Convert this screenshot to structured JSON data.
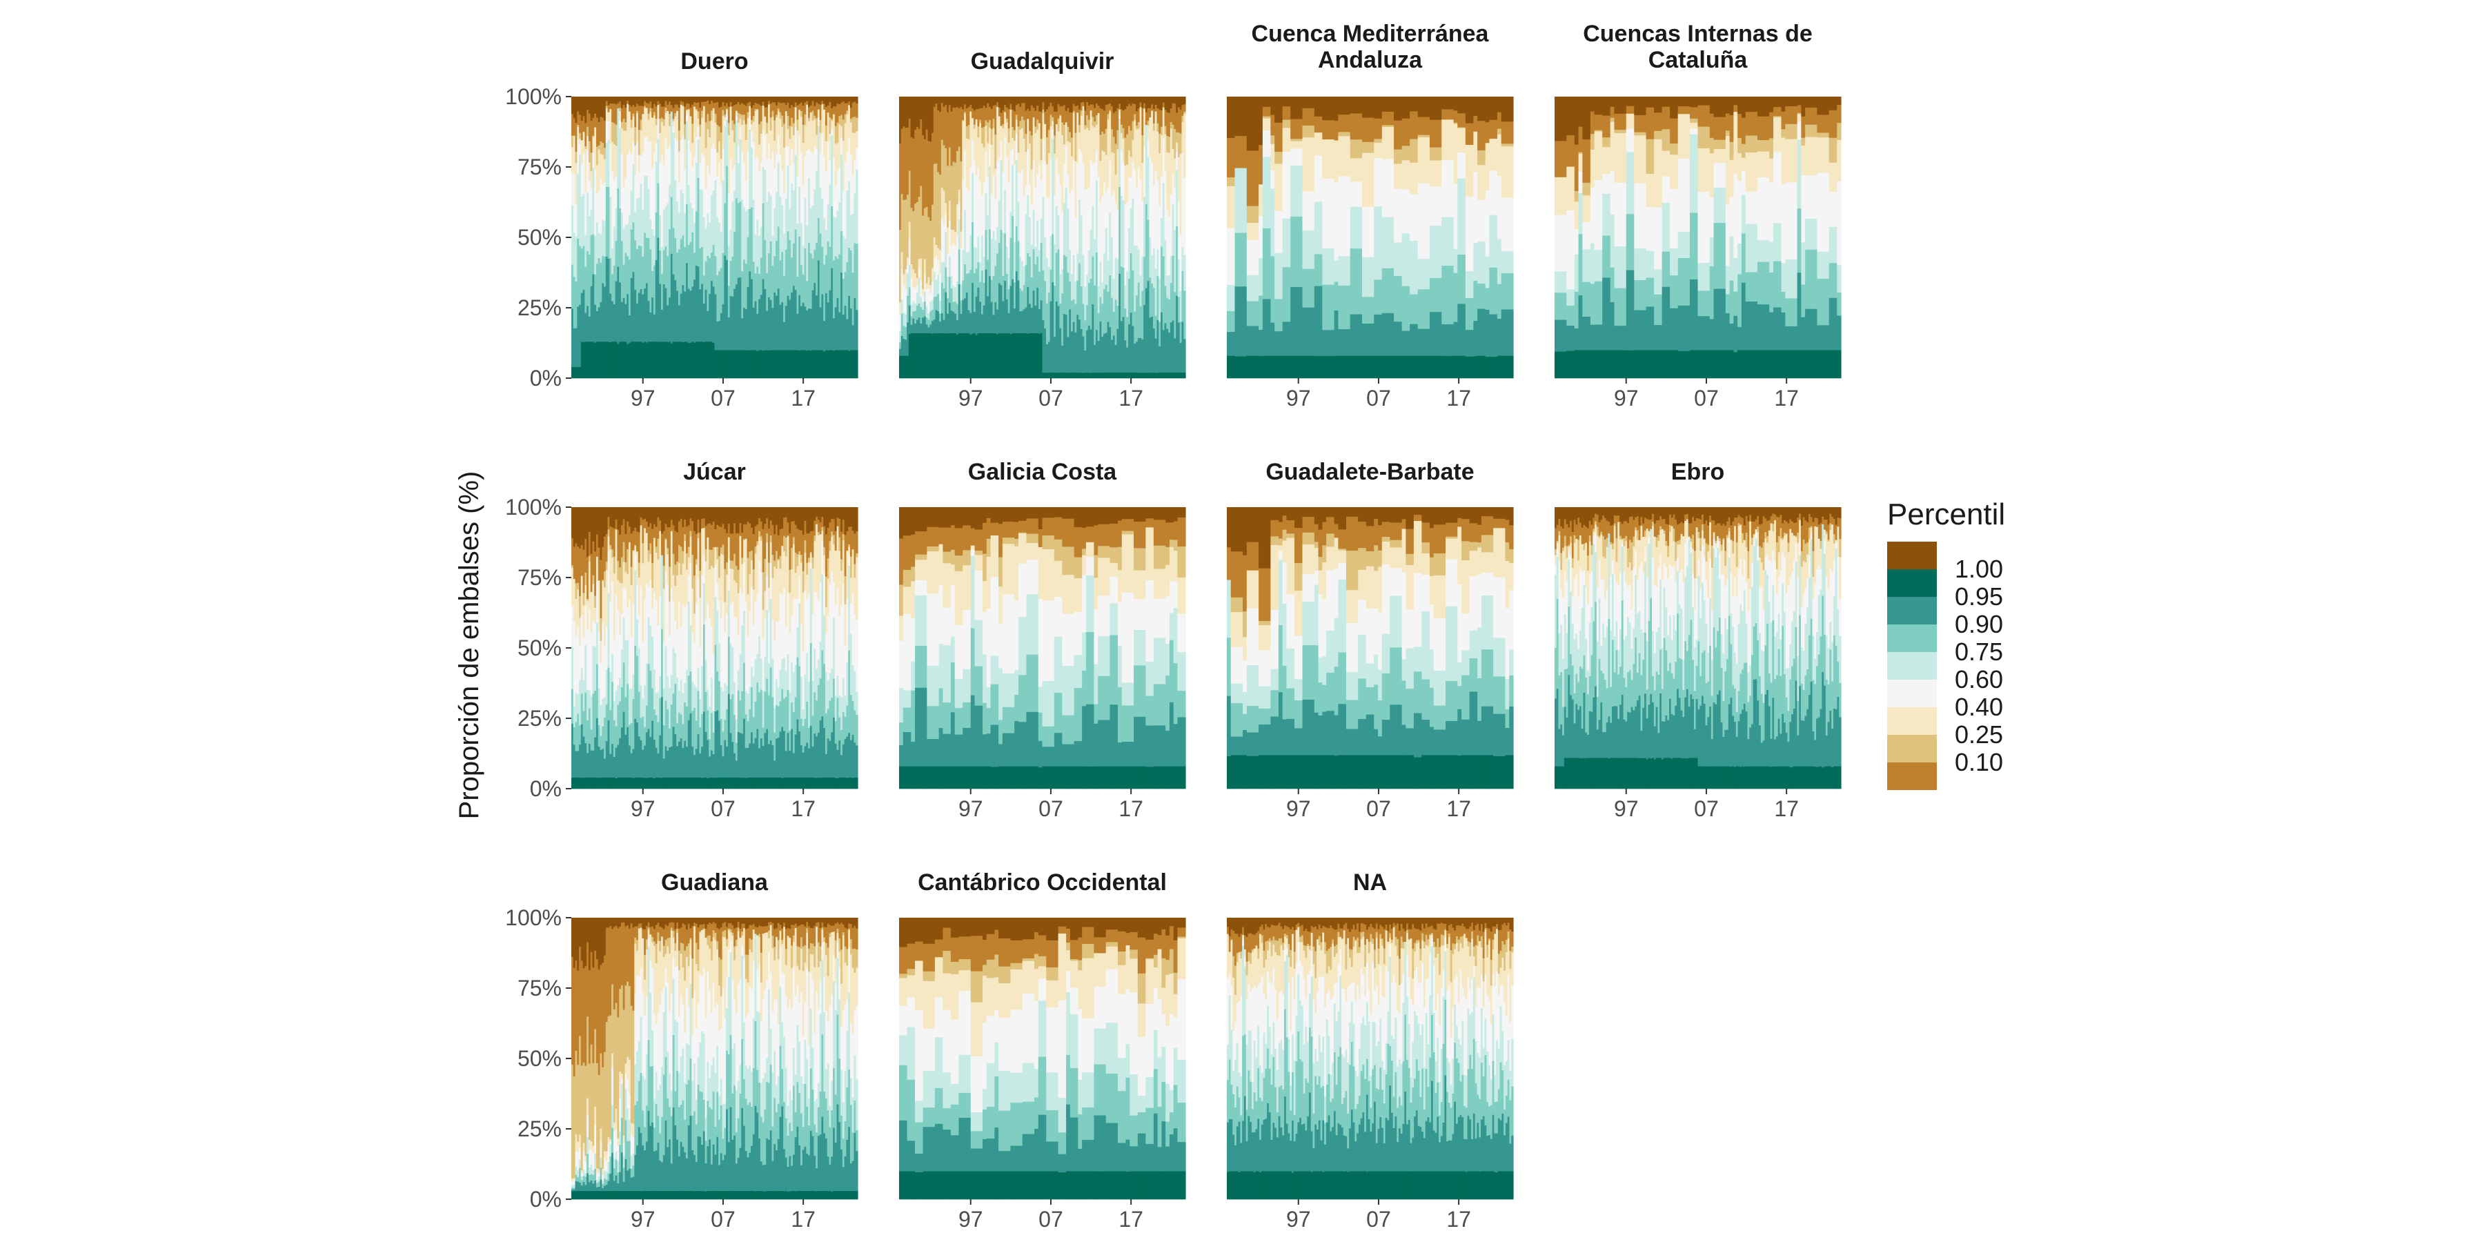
{
  "chart_data": {
    "type": "area",
    "ylabel": "Proporción de embalses (%)",
    "ylim": [
      0,
      1
    ],
    "y_ticks": [
      "0%",
      "25%",
      "50%",
      "75%",
      "100%"
    ],
    "x_ticks": [
      "97",
      "07",
      "17"
    ],
    "legend": {
      "title": "Percentil",
      "position": "right",
      "labels": [
        "1.00",
        "0.95",
        "0.90",
        "0.75",
        "0.60",
        "0.40",
        "0.25",
        "0.10"
      ]
    },
    "palette": [
      "#8c510a",
      "#016c59",
      "#35978f",
      "#80cdc1",
      "#c7eae5",
      "#f5f5f5",
      "#f6e8c3",
      "#dfc27d",
      "#bf812d"
    ],
    "panels": [
      {
        "title_lines": [
          "Duero"
        ],
        "style": "dense",
        "seed": 11,
        "green_bias": 0.15,
        "floor": 0.13,
        "floor_later": 0.1,
        "floor_start": 0.04,
        "brown_top": 0.05,
        "early_brown": 0.12,
        "step": 0
      },
      {
        "title_lines": [
          "Guadalquivir"
        ],
        "style": "dense",
        "seed": 23,
        "green_bias": 0.05,
        "floor": 0.16,
        "floor_later": 0.02,
        "floor_start": 0.08,
        "brown_top": 0.07,
        "early_brown": 0.25,
        "early_tan": 0.45,
        "step": 0
      },
      {
        "title_lines": [
          "Cuenca Mediterránea",
          "Andaluza"
        ],
        "style": "blocky",
        "seed": 37,
        "green_bias": 0.1,
        "floor": 0.08,
        "floor_later": 0.08,
        "floor_start": 0.08,
        "brown_top": 0.12,
        "early_brown": 0.3,
        "step": 10
      },
      {
        "title_lines": [
          "Cuencas Internas de",
          "Cataluña"
        ],
        "style": "blocky",
        "seed": 41,
        "green_bias": 0.05,
        "floor": 0.1,
        "floor_later": 0.1,
        "floor_start": 0.1,
        "brown_top": 0.1,
        "early_brown": 0.2,
        "step": 10
      },
      {
        "title_lines": [
          "Júcar"
        ],
        "style": "dense",
        "seed": 53,
        "green_bias": 0.0,
        "floor": 0.04,
        "floor_later": 0.04,
        "floor_start": 0.04,
        "brown_top": 0.12,
        "early_brown": 0.2,
        "step": 0
      },
      {
        "title_lines": [
          "Galicia Costa"
        ],
        "style": "blocky",
        "seed": 67,
        "green_bias": 0.05,
        "floor": 0.08,
        "floor_later": 0.08,
        "floor_start": 0.08,
        "brown_top": 0.1,
        "early_brown": 0.1,
        "step": 11
      },
      {
        "title_lines": [
          "Guadalete-Barbate"
        ],
        "style": "blocky",
        "seed": 71,
        "green_bias": 0.05,
        "floor": 0.12,
        "floor_later": 0.12,
        "floor_start": 0.12,
        "brown_top": 0.1,
        "early_brown": 0.35,
        "step": 8
      },
      {
        "title_lines": [
          "Ebro"
        ],
        "style": "dense",
        "seed": 83,
        "green_bias": 0.15,
        "floor": 0.11,
        "floor_later": 0.08,
        "floor_start": 0.08,
        "brown_top": 0.08,
        "early_brown": 0.05,
        "step": 0
      },
      {
        "title_lines": [
          "Guadiana"
        ],
        "style": "dense",
        "seed": 97,
        "green_bias": 0.05,
        "floor": 0.03,
        "floor_later": 0.03,
        "floor_start": 0.03,
        "brown_top": 0.05,
        "early_brown": 0.3,
        "early_tan": 0.75,
        "step": 0
      },
      {
        "title_lines": [
          "Cantábrico Occidental"
        ],
        "style": "blocky",
        "seed": 101,
        "green_bias": 0.0,
        "floor": 0.1,
        "floor_later": 0.1,
        "floor_start": 0.1,
        "brown_top": 0.1,
        "early_brown": 0.1,
        "step": 30
      },
      {
        "title_lines": [
          "NA"
        ],
        "style": "dense",
        "seed": 113,
        "green_bias": 0.1,
        "floor": 0.1,
        "floor_later": 0.1,
        "floor_start": 0.1,
        "brown_top": 0.06,
        "early_brown": 0.05,
        "step": 0
      }
    ]
  }
}
